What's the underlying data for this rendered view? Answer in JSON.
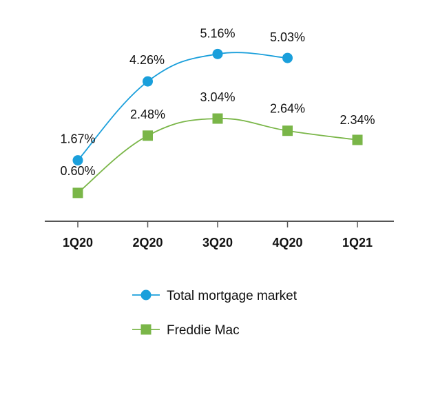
{
  "chart_data": {
    "type": "line",
    "title": "",
    "xlabel": "",
    "ylabel": "",
    "categories": [
      "1Q20",
      "2Q20",
      "3Q20",
      "4Q20",
      "1Q21"
    ],
    "ylim": [
      0,
      6
    ],
    "grid": false,
    "legend_position": "bottom-center",
    "series": [
      {
        "name": "Total mortgage market",
        "color": "#1a9fdb",
        "marker": "circle",
        "values": [
          1.67,
          4.26,
          5.16,
          5.03,
          null
        ],
        "labels": [
          "1.67%",
          "4.26%",
          "5.16%",
          "5.03%",
          null
        ]
      },
      {
        "name": "Freddie Mac",
        "color": "#7ab648",
        "marker": "square",
        "values": [
          0.6,
          2.48,
          3.04,
          2.64,
          2.34
        ],
        "labels": [
          "0.60%",
          "2.48%",
          "3.04%",
          "2.64%",
          "2.34%"
        ]
      }
    ]
  }
}
